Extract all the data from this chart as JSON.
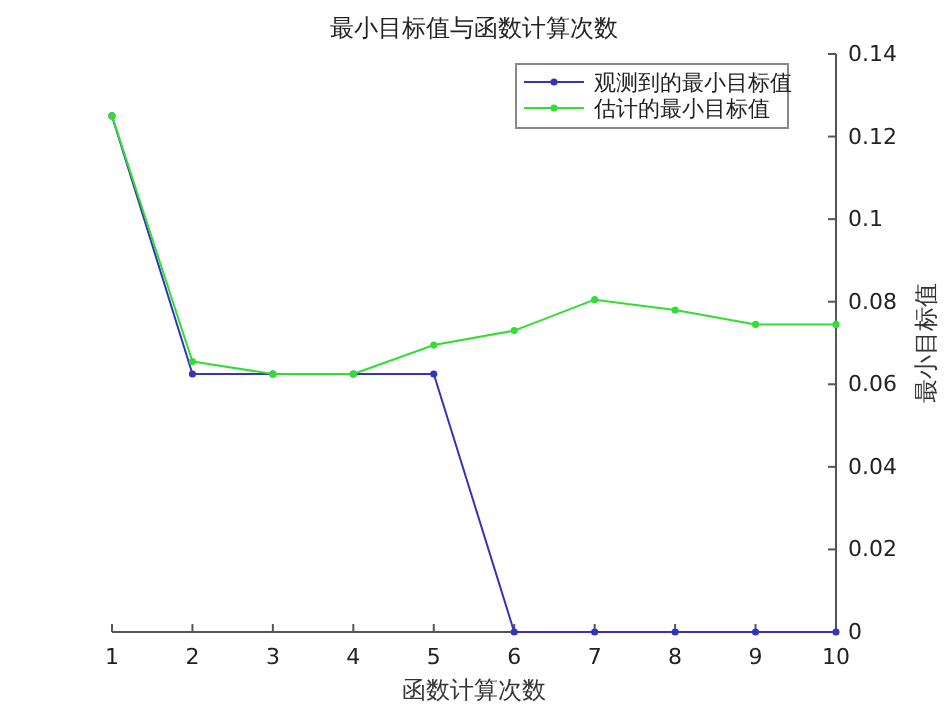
{
  "chart_data": {
    "type": "line",
    "title": "最小目标值与函数计算次数",
    "xlabel": "函数计算次数",
    "ylabel": "最小目标值",
    "x": [
      1,
      2,
      3,
      4,
      5,
      6,
      7,
      8,
      9,
      10
    ],
    "series": [
      {
        "name": "观测到的最小目标值",
        "color": "#3333bb",
        "values": [
          0.125,
          0.0625,
          0.0625,
          0.0625,
          0.0625,
          0,
          0,
          0,
          0,
          0
        ]
      },
      {
        "name": "估计的最小目标值",
        "color": "#33dd33",
        "values": [
          0.125,
          0.0655,
          0.0625,
          0.0625,
          0.0695,
          0.073,
          0.0805,
          0.078,
          0.0745,
          0.0745
        ]
      }
    ],
    "xlim": [
      1,
      10
    ],
    "xticks": [
      1,
      2,
      3,
      4,
      5,
      6,
      7,
      8,
      9,
      10
    ],
    "ylim": [
      0,
      0.14
    ],
    "yticks": [
      0,
      0.02,
      0.04,
      0.06,
      0.08,
      0.1,
      0.12,
      0.14
    ],
    "grid": false,
    "legend": "top right",
    "marker": "circle",
    "line_style": "solid"
  }
}
